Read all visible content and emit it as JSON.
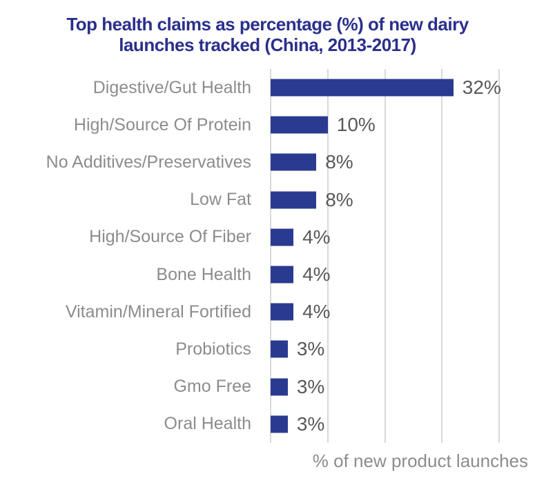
{
  "title": "Top health claims as percentage (%) of new dairy\nlaunches tracked (China, 2013-2017)",
  "xlabel": "% of new product launches",
  "colors": {
    "background": "#FFFFFF",
    "title": "#2A2F8C",
    "bar": "#2B3A91",
    "gridline": "#D9D9D9",
    "category_label": "#8C8C8C",
    "value_label": "#595959",
    "axis_label": "#8C8C8C"
  },
  "chart_data": {
    "type": "bar",
    "orientation": "horizontal",
    "title": "Top health claims as percentage (%) of new dairy launches tracked (China, 2013-2017)",
    "xlabel": "% of new product launches",
    "ylabel": "",
    "categories": [
      "Digestive/Gut Health",
      "High/Source Of Protein",
      "No Additives/Preservatives",
      "Low Fat",
      "High/Source Of Fiber",
      "Bone Health",
      "Vitamin/Mineral Fortified",
      "Probiotics",
      "Gmo Free",
      "Oral Health"
    ],
    "values": [
      32,
      10,
      8,
      8,
      4,
      4,
      4,
      3,
      3,
      3
    ],
    "value_labels": [
      "32%",
      "10%",
      "8%",
      "8%",
      "4%",
      "4%",
      "4%",
      "3%",
      "3%",
      "3%"
    ],
    "xlim": [
      0,
      40
    ],
    "gridline_interval": 10,
    "grid": true,
    "x_tick_labels_shown": false,
    "legend": "none",
    "data_labels_position": "outside-end"
  }
}
